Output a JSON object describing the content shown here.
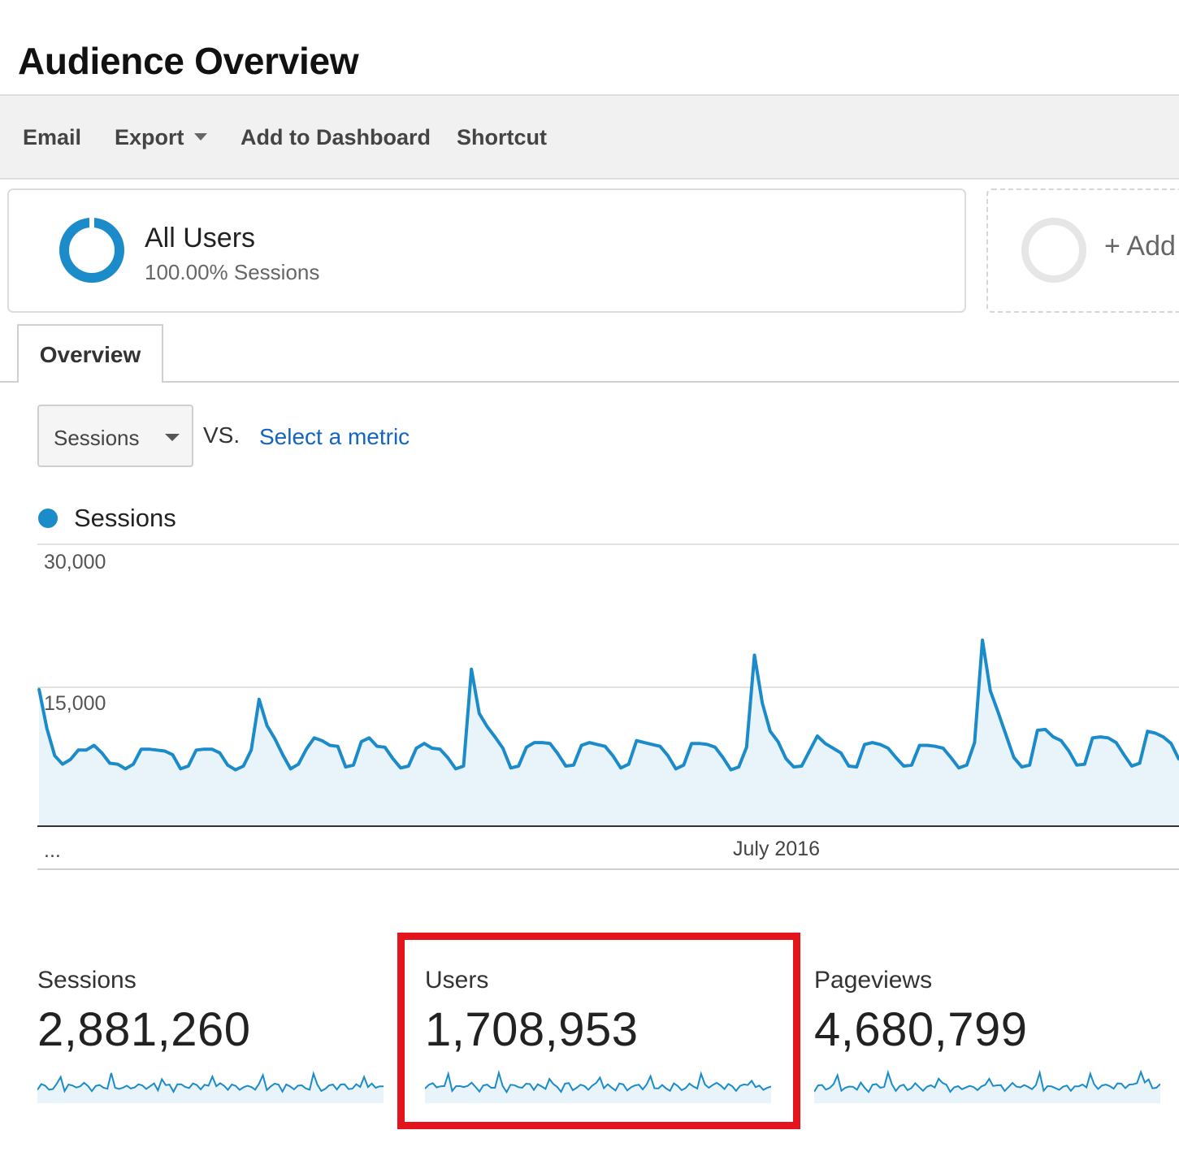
{
  "page": {
    "title": "Audience Overview"
  },
  "toolbar": {
    "email": "Email",
    "export": "Export",
    "add_to_dashboard": "Add to Dashboard",
    "shortcut": "Shortcut"
  },
  "segment": {
    "name": "All Users",
    "subtitle": "100.00% Sessions",
    "ring_color": "#1b8bc9",
    "add_label": "+ Add"
  },
  "tabs": {
    "overview": "Overview"
  },
  "metric_selector": {
    "primary": "Sessions",
    "vs": "VS.",
    "secondary_link": "Select a metric"
  },
  "legend": {
    "series_name": "Sessions",
    "color": "#1b8bc9"
  },
  "chart_data": {
    "type": "area",
    "title": "",
    "xlabel": "",
    "ylabel": "",
    "ylim": [
      0,
      30000
    ],
    "yticks": [
      "30,000",
      "15,000"
    ],
    "ytick_values": [
      30000,
      15000
    ],
    "xticks": [
      "...",
      "July 2016"
    ],
    "xtick_indices": [
      0,
      66
    ],
    "grid": true,
    "legend": "top-left",
    "series": [
      {
        "name": "Sessions",
        "color": "#1b8bc9",
        "values": [
          14600,
          10400,
          7500,
          6600,
          7100,
          8100,
          8100,
          8600,
          7800,
          6700,
          6600,
          6100,
          6600,
          8200,
          8200,
          8100,
          8000,
          7600,
          6100,
          6400,
          8100,
          8200,
          8200,
          7800,
          6500,
          6000,
          6400,
          8100,
          13500,
          10700,
          9300,
          7600,
          6100,
          6600,
          8200,
          9400,
          9100,
          8600,
          8500,
          6300,
          6500,
          9000,
          9400,
          8500,
          8400,
          7200,
          6200,
          6400,
          8300,
          8800,
          8300,
          8200,
          7300,
          6100,
          6400,
          16700,
          12000,
          10600,
          9500,
          8300,
          6200,
          6400,
          8400,
          8900,
          8900,
          8800,
          7700,
          6400,
          6500,
          8600,
          8900,
          8700,
          8500,
          7500,
          6200,
          6600,
          9100,
          8900,
          8700,
          8500,
          7500,
          6100,
          6500,
          8800,
          8800,
          8700,
          8400,
          7300,
          6000,
          6300,
          8400,
          18200,
          13100,
          10100,
          9000,
          7200,
          6300,
          6400,
          8000,
          9600,
          8800,
          8300,
          7800,
          6400,
          6300,
          8700,
          8900,
          8700,
          8300,
          7300,
          6400,
          6500,
          8600,
          8600,
          8500,
          8300,
          7300,
          6200,
          6500,
          8900,
          19800,
          14400,
          12100,
          9700,
          7300,
          6300,
          6500,
          10200,
          10300,
          9500,
          9100,
          8000,
          6500,
          6600,
          9400,
          9500,
          9400,
          8900,
          7600,
          6400,
          6700,
          10100,
          9900,
          9500,
          8800,
          7100
        ]
      }
    ]
  },
  "scorecards": [
    {
      "label": "Sessions",
      "value": "2,881,260"
    },
    {
      "label": "Users",
      "value": "1,708,953"
    },
    {
      "label": "Pageviews",
      "value": "4,680,799"
    }
  ],
  "highlight": {
    "color": "#e3141b"
  }
}
